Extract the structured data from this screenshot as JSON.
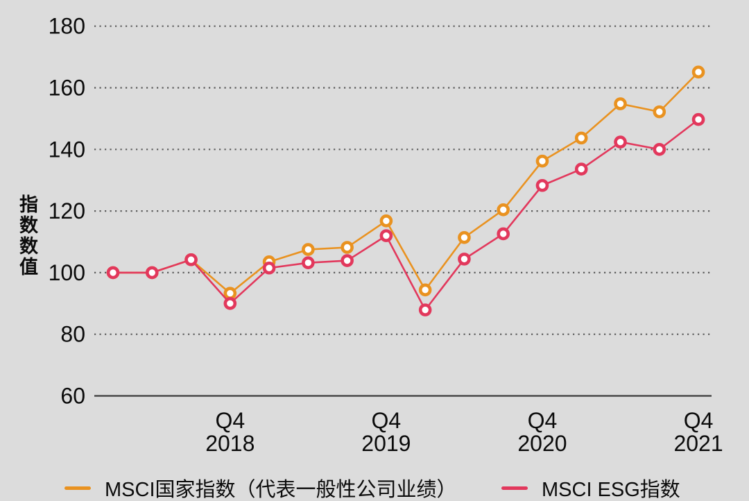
{
  "colors": {
    "background": "#DCDCDC",
    "axis_line": "#4A4A4A",
    "grid_dot": "#5A5A5A",
    "text": "#0B0B0B",
    "series_country": "#E99220",
    "series_esg": "#E2385C"
  },
  "chart_data": {
    "type": "line",
    "title": "",
    "ylabel": "指数数值",
    "xlabel": "",
    "ylim": [
      60,
      185
    ],
    "yticks": [
      180,
      160,
      140,
      120,
      100,
      80,
      60
    ],
    "grid": "horizontal-dotted",
    "legend_position": "bottom",
    "x": [
      "2018 Q1",
      "2018 Q2",
      "2018 Q3",
      "2018 Q4",
      "2019 Q1",
      "2019 Q2",
      "2019 Q3",
      "2019 Q4",
      "2020 Q1",
      "2020 Q2",
      "2020 Q3",
      "2020 Q4",
      "2021 Q1",
      "2021 Q2",
      "2021 Q3",
      "2021 Q4"
    ],
    "xtick_indices": [
      3,
      7,
      11,
      15
    ],
    "xticks": [
      {
        "quarter": "Q4",
        "year": "2018"
      },
      {
        "quarter": "Q4",
        "year": "2019"
      },
      {
        "quarter": "Q4",
        "year": "2020"
      },
      {
        "quarter": "Q4",
        "year": "2021"
      }
    ],
    "series": [
      {
        "name": "MSCI国家指数（代表一般性公司业绩）",
        "color": "#E99220",
        "values": [
          100,
          100,
          104.2,
          93.3,
          103.5,
          107.5,
          108.2,
          116.8,
          94.4,
          111.4,
          120.4,
          136.2,
          143.7,
          154.8,
          152.2,
          165.1
        ]
      },
      {
        "name": "MSCI ESG指数",
        "color": "#E2385C",
        "values": [
          100,
          100,
          104.2,
          90.0,
          101.5,
          103.2,
          103.9,
          112.0,
          87.9,
          104.4,
          112.6,
          128.3,
          133.6,
          142.4,
          140.0,
          149.7
        ]
      }
    ]
  }
}
